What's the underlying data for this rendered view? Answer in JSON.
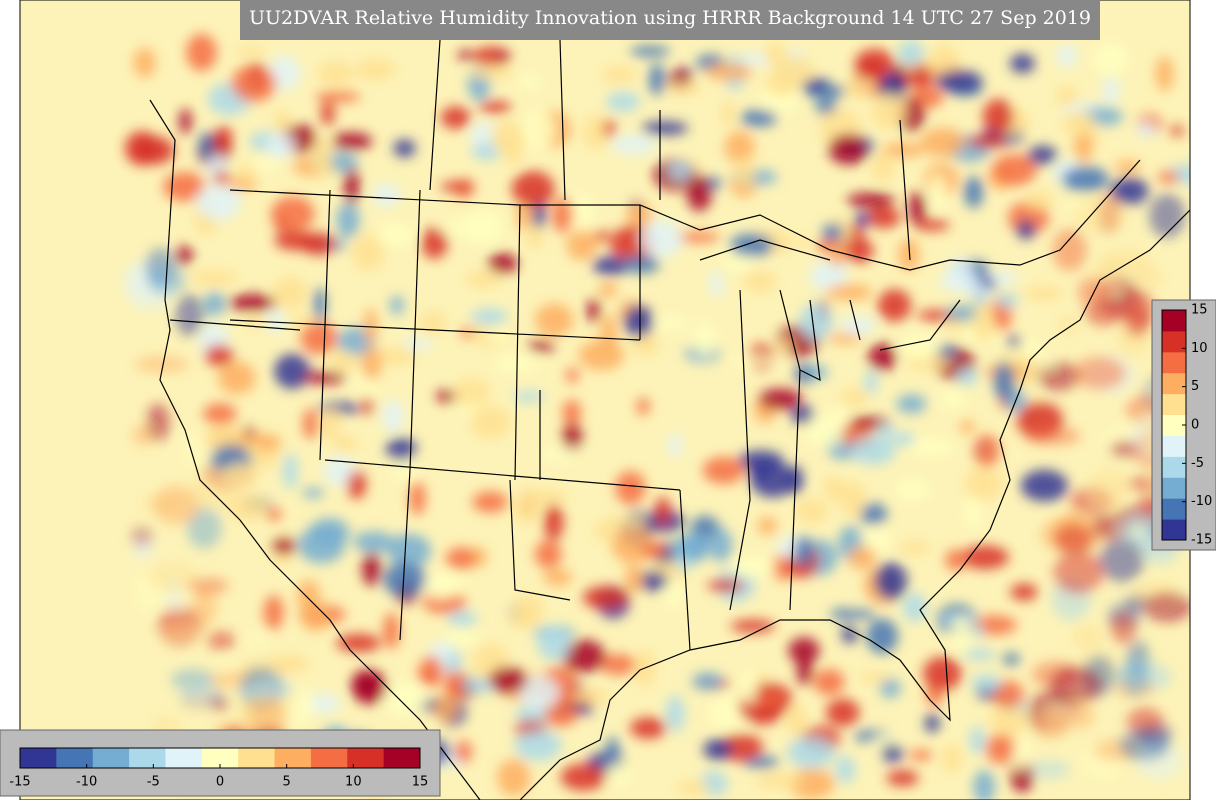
{
  "title": "UU2DVAR Relative Humidity Innovation using HRRR Background 14 UTC 27 Sep 2019",
  "colorbar": {
    "limits": [
      -15,
      15
    ],
    "ticks": [
      -15,
      -10,
      -5,
      0,
      5,
      10,
      15
    ],
    "colors": [
      "#313695",
      "#4575b4",
      "#74add1",
      "#abd9e9",
      "#e0f3f8",
      "#ffffbf",
      "#fee090",
      "#fdae61",
      "#f46d43",
      "#d73027",
      "#a50026"
    ]
  }
}
